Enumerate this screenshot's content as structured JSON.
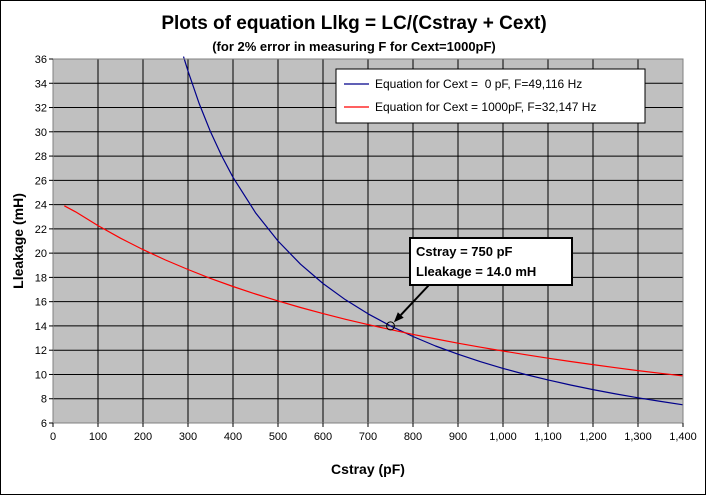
{
  "chart_data": {
    "type": "line",
    "title": "Plots of equation Llkg = LC/(Cstray + Cext)",
    "subtitle": "(for 2% error in measuring F for Cext=1000pF)",
    "xlabel": "Cstray (pF)",
    "ylabel": "Lleakage (mH)",
    "xlim": [
      0,
      1400
    ],
    "ylim": [
      6,
      36
    ],
    "xticks": [
      0,
      100,
      200,
      300,
      400,
      500,
      600,
      700,
      800,
      900,
      1000,
      1100,
      1200,
      1300,
      1400
    ],
    "xtick_labels": [
      "0",
      "100",
      "200",
      "300",
      "400",
      "500",
      "600",
      "700",
      "800",
      "900",
      "1,000",
      "1,100",
      "1,200",
      "1,300",
      "1,400"
    ],
    "yticks": [
      6,
      8,
      10,
      12,
      14,
      16,
      18,
      20,
      22,
      24,
      26,
      28,
      30,
      32,
      34,
      36
    ],
    "ytick_labels": [
      "6",
      "8",
      "10",
      "12",
      "14",
      "16",
      "18",
      "20",
      "22",
      "24",
      "26",
      "28",
      "30",
      "32",
      "34",
      "36"
    ],
    "grid": true,
    "plot_background": "#c0c0c0",
    "legend_position": "top-right",
    "series": [
      {
        "name": "Equation for Cext =  0 pF, F=49,116 Hz",
        "color": "#00008b",
        "x": [
          290,
          300,
          325,
          350,
          375,
          400,
          450,
          500,
          550,
          600,
          650,
          700,
          750,
          800,
          850,
          900,
          950,
          1000,
          1050,
          1100,
          1150,
          1200,
          1250,
          1300,
          1350,
          1400
        ],
        "y": [
          36.2,
          35.0,
          32.3,
          30.0,
          28.0,
          26.25,
          23.33,
          21.0,
          19.09,
          17.5,
          16.15,
          15.0,
          14.0,
          13.13,
          12.35,
          11.67,
          11.05,
          10.5,
          10.0,
          9.55,
          9.13,
          8.75,
          8.4,
          8.08,
          7.78,
          7.5
        ]
      },
      {
        "name": "Equation for Cext = 1000pF, F=32,147 Hz",
        "color": "#ff0000",
        "x": [
          25,
          50,
          100,
          150,
          200,
          250,
          300,
          350,
          400,
          450,
          500,
          550,
          600,
          650,
          700,
          750,
          800,
          850,
          900,
          950,
          1000,
          1050,
          1100,
          1150,
          1200,
          1250,
          1300,
          1350,
          1400
        ],
        "y": [
          23.9,
          23.41,
          22.27,
          21.23,
          20.29,
          19.43,
          18.65,
          17.92,
          17.25,
          16.63,
          16.06,
          15.52,
          15.02,
          14.55,
          14.11,
          13.7,
          13.3,
          12.93,
          12.58,
          12.25,
          11.93,
          11.63,
          11.34,
          11.07,
          10.81,
          10.56,
          10.32,
          10.1,
          9.88
        ]
      }
    ],
    "annotation": {
      "line1": "Cstray = 750 pF",
      "line2": "Lleakage = 14.0 mH",
      "x": 750,
      "y": 14.0
    }
  }
}
